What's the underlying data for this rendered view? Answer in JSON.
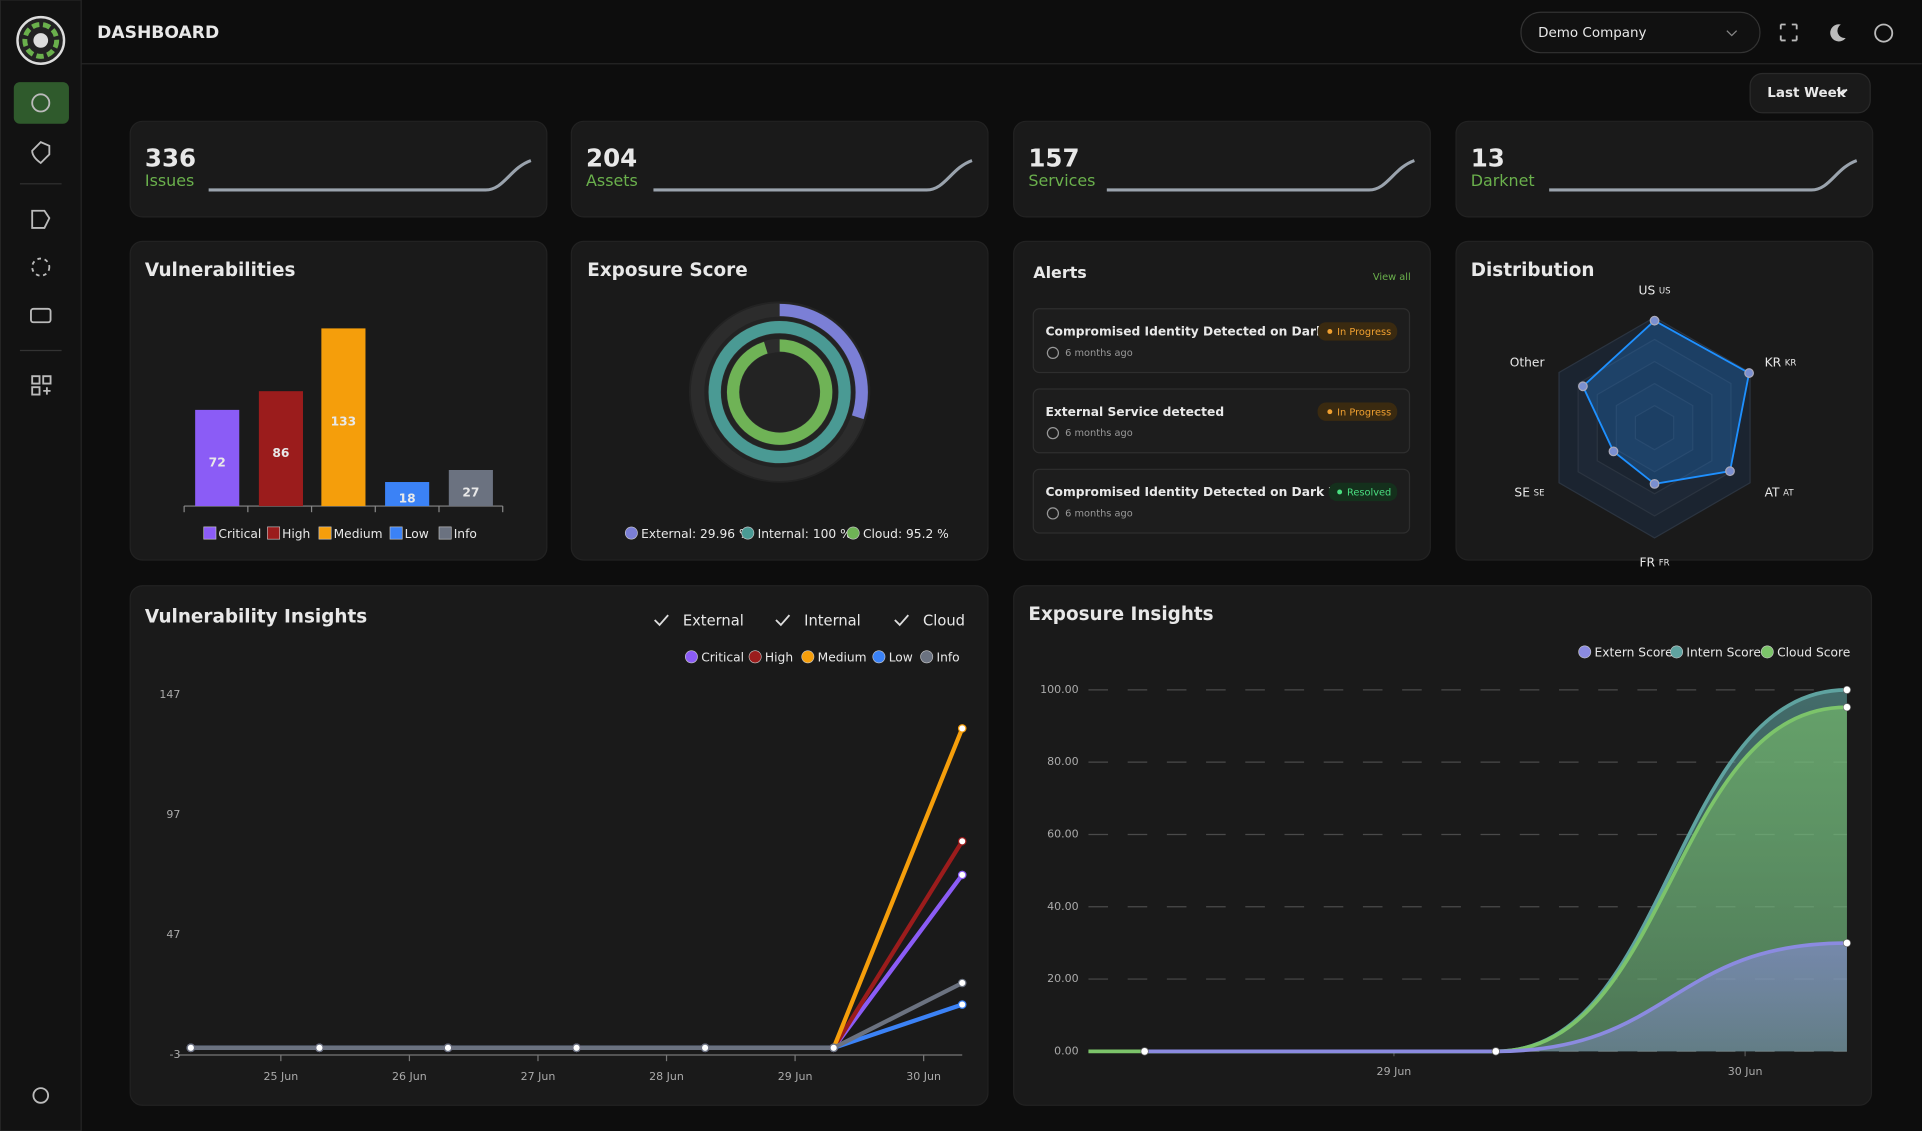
{
  "header": {
    "title": "DASHBOARD",
    "company": "Demo Company",
    "period": "Last Week"
  },
  "stats": [
    {
      "value": 336,
      "label": "Issues"
    },
    {
      "value": 204,
      "label": "Assets"
    },
    {
      "value": 157,
      "label": "Services"
    },
    {
      "value": 13,
      "label": "Darknet"
    }
  ],
  "alerts": {
    "title": "Alerts",
    "view_all": "View all",
    "items": [
      {
        "title": "Compromised Identity Detected on Dark Web",
        "status": "In Progress",
        "time": "6 months ago"
      },
      {
        "title": "External Service detected",
        "status": "In Progress",
        "time": "6 months ago"
      },
      {
        "title": "Compromised Identity Detected on Dark Web",
        "status": "Resolved",
        "time": "6 months ago"
      }
    ]
  },
  "chart_data": [
    {
      "type": "bar",
      "title": "Vulnerabilities",
      "categories": [
        "Critical",
        "High",
        "Medium",
        "Low",
        "Info"
      ],
      "values": [
        72,
        86,
        133,
        18,
        27
      ],
      "colors": [
        "#8b5cf6",
        "#9b1c1c",
        "#f59e0b",
        "#3b82f6",
        "#6b7280"
      ]
    },
    {
      "type": "radial",
      "title": "Exposure Score",
      "values": [
        29.96,
        100,
        95.2
      ],
      "value_labels": [
        "External: 29.96 %",
        "Internal: 100 %",
        "Cloud: 95.2 %"
      ],
      "colors": [
        "#7b7fd6",
        "#4a9a94",
        "#6fb356"
      ],
      "rlim": [
        0,
        100
      ]
    },
    {
      "type": "radar",
      "title": "Distribution",
      "categories": [
        "US",
        "KR",
        "AT",
        "FR",
        "SE",
        "Other"
      ],
      "codes": [
        "us",
        "kr",
        "at",
        "fr",
        "se",
        null
      ],
      "values": [
        97,
        99,
        79,
        51,
        43,
        75
      ],
      "rlim": [
        0,
        100
      ],
      "color": "#1e90ff"
    },
    {
      "type": "line",
      "title": "Vulnerability Insights",
      "filters": [
        "External",
        "Internal",
        "Cloud"
      ],
      "x": [
        24.3,
        25.3,
        26.3,
        27.3,
        28.3,
        29.3,
        30.3
      ],
      "series": [
        {
          "name": "Critical",
          "color": "#8b5cf6",
          "values": [
            0,
            0,
            0,
            0,
            0,
            0,
            72
          ]
        },
        {
          "name": "High",
          "color": "#9b1c1c",
          "values": [
            0,
            0,
            0,
            0,
            0,
            0,
            86
          ]
        },
        {
          "name": "Medium",
          "color": "#f59e0b",
          "values": [
            0,
            0,
            0,
            0,
            0,
            0,
            133
          ]
        },
        {
          "name": "Low",
          "color": "#3b82f6",
          "values": [
            0,
            0,
            0,
            0,
            0,
            0,
            18
          ]
        },
        {
          "name": "Info",
          "color": "#6b7280",
          "values": [
            0,
            0,
            0,
            0,
            0,
            0,
            27
          ]
        }
      ],
      "xlim": [
        24.2,
        30.3
      ],
      "xticks": [
        {
          "value": 25,
          "label": "25 Jun"
        },
        {
          "value": 26,
          "label": "26 Jun"
        },
        {
          "value": 27,
          "label": "27 Jun"
        },
        {
          "value": 28,
          "label": "28 Jun"
        },
        {
          "value": 29,
          "label": "29 Jun"
        },
        {
          "value": 30,
          "label": "30 Jun"
        }
      ],
      "ylim": [
        -3,
        147
      ],
      "yticks": [
        -3,
        47,
        97,
        147
      ]
    },
    {
      "type": "area",
      "title": "Exposure Insights",
      "x": [
        28.29,
        29.29,
        30.29
      ],
      "series": [
        {
          "name": "Extern Score",
          "color": "#8b8be0",
          "values": [
            0,
            0,
            29.96
          ]
        },
        {
          "name": "Intern Score",
          "color": "#5fa3a0",
          "values": [
            0,
            0,
            100
          ]
        },
        {
          "name": "Cloud Score",
          "color": "#7cc46a",
          "values": [
            0,
            0,
            95.2
          ]
        }
      ],
      "xlim": [
        28.13,
        30.29
      ],
      "xticks": [
        {
          "value": 29,
          "label": "29 Jun"
        },
        {
          "value": 30,
          "label": "30 Jun"
        }
      ],
      "ylim": [
        0,
        100
      ],
      "yticks": [
        {
          "value": 0,
          "label": "0.00"
        },
        {
          "value": 20,
          "label": "20.00"
        },
        {
          "value": 40,
          "label": "40.00"
        },
        {
          "value": 60,
          "label": "60.00"
        },
        {
          "value": 80,
          "label": "80.00"
        },
        {
          "value": 100,
          "label": "100.00"
        }
      ],
      "grid": true
    }
  ]
}
